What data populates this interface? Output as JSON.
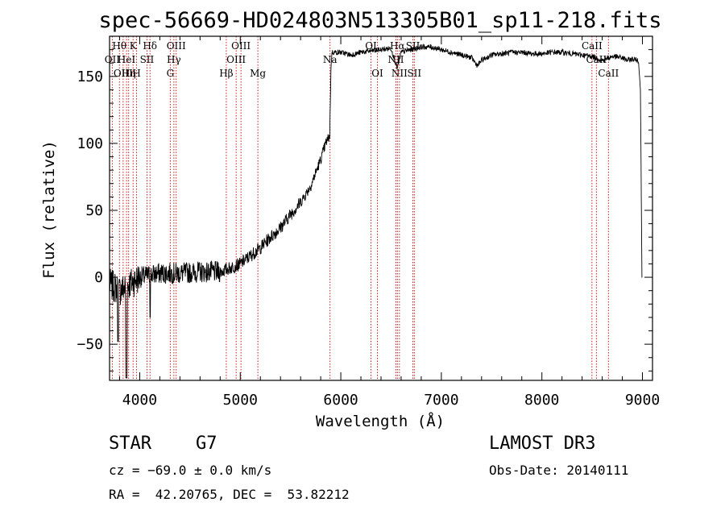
{
  "chart_data": {
    "type": "line",
    "title": "spec-56669-HD024803N513305B01_sp11-218.fits",
    "xlabel": "Wavelength (Å)",
    "ylabel": "Flux (relative)",
    "xlim": [
      3700,
      9100
    ],
    "ylim": [
      -77,
      180
    ],
    "xticks": [
      4000,
      5000,
      6000,
      7000,
      8000,
      9000
    ],
    "yticks": [
      -50,
      0,
      50,
      100,
      150
    ],
    "ytick_labels": [
      "−50",
      "0",
      "50",
      "100",
      "150"
    ],
    "spectrum_anchors": {
      "x": [
        3700,
        3800,
        3900,
        4000,
        4200,
        4400,
        4600,
        4800,
        5000,
        5100,
        5200,
        5300,
        5400,
        5500,
        5600,
        5700,
        5750,
        5800,
        5850,
        5890,
        5900,
        5910,
        5950,
        6000,
        6100,
        6200,
        6300,
        6400,
        6500,
        6562,
        6600,
        6700,
        6800,
        6900,
        7000,
        7100,
        7200,
        7300,
        7360,
        7400,
        7500,
        7600,
        7700,
        7800,
        7900,
        8000,
        8100,
        8200,
        8300,
        8400,
        8500,
        8600,
        8700,
        8800,
        8850,
        8900,
        8960,
        8980,
        8990,
        8995,
        9000
      ],
      "y": [
        -5,
        -10,
        -5,
        0,
        3,
        3,
        4,
        4,
        10,
        16,
        22,
        30,
        37,
        47,
        56,
        68,
        78,
        88,
        100,
        106,
        150,
        168,
        168,
        168,
        166,
        168,
        169,
        170,
        171,
        156,
        168,
        170,
        172,
        172,
        170,
        168,
        166,
        164,
        158,
        162,
        166,
        167,
        168,
        168,
        167,
        167,
        168,
        168,
        167,
        166,
        165,
        162,
        165,
        164,
        162,
        163,
        162,
        140,
        50,
        0,
        0
      ]
    },
    "spectral_lines": [
      {
        "wavelength": 3727,
        "row1": "",
        "row2": "OII",
        "row3": ""
      },
      {
        "wavelength": 3798,
        "row1": "Hθ",
        "row2": "",
        "row3": ""
      },
      {
        "wavelength": 3835,
        "row1": "",
        "row2": "",
        "row3": "OIII"
      },
      {
        "wavelength": 3869,
        "row1": "",
        "row2": "HeI",
        "row3": ""
      },
      {
        "wavelength": 3890,
        "row1": "",
        "row2": "",
        "row3": "Hη"
      },
      {
        "wavelength": 3934,
        "row1": "K",
        "row2": "",
        "row3": ""
      },
      {
        "wavelength": 3969,
        "row1": "",
        "row2": "",
        "row3": "H"
      },
      {
        "wavelength": 4072,
        "row1": "",
        "row2": "SII",
        "row3": ""
      },
      {
        "wavelength": 4102,
        "row1": "Hδ",
        "row2": "",
        "row3": ""
      },
      {
        "wavelength": 4304,
        "row1": "",
        "row2": "",
        "row3": "G"
      },
      {
        "wavelength": 4340,
        "row1": "",
        "row2": "Hγ",
        "row3": ""
      },
      {
        "wavelength": 4363,
        "row1": "OIII",
        "row2": "",
        "row3": ""
      },
      {
        "wavelength": 4861,
        "row1": "",
        "row2": "",
        "row3": "Hβ"
      },
      {
        "wavelength": 4959,
        "row1": "",
        "row2": "OIII",
        "row3": ""
      },
      {
        "wavelength": 5007,
        "row1": "OIII",
        "row2": "",
        "row3": ""
      },
      {
        "wavelength": 5175,
        "row1": "",
        "row2": "",
        "row3": "Mg"
      },
      {
        "wavelength": 5893,
        "row1": "",
        "row2": "Na",
        "row3": ""
      },
      {
        "wavelength": 6300,
        "row1": "OI",
        "row2": "",
        "row3": ""
      },
      {
        "wavelength": 6364,
        "row1": "",
        "row2": "",
        "row3": "OI"
      },
      {
        "wavelength": 6548,
        "row1": "",
        "row2": "NII",
        "row3": ""
      },
      {
        "wavelength": 6563,
        "row1": "Hα",
        "row2": "",
        "row3": ""
      },
      {
        "wavelength": 6583,
        "row1": "",
        "row2": "",
        "row3": "NII"
      },
      {
        "wavelength": 6717,
        "row1": "SII",
        "row2": "",
        "row3": ""
      },
      {
        "wavelength": 6731,
        "row1": "",
        "row2": "",
        "row3": "SII"
      },
      {
        "wavelength": 8498,
        "row1": "CaII",
        "row2": "",
        "row3": ""
      },
      {
        "wavelength": 8542,
        "row1": "",
        "row2": "CaII",
        "row3": ""
      },
      {
        "wavelength": 8662,
        "row1": "",
        "row2": "",
        "row3": "CaII"
      }
    ]
  },
  "info": {
    "class_label": "STAR",
    "subclass_label": "G7",
    "survey": "LAMOST DR3",
    "cz": "cz = −69.0 ± 0.0 km/s",
    "obs_date": "Obs-Date: 20140111",
    "coords": "RA =  42.20765, DEC =  53.82212"
  },
  "colors": {
    "line_marker": "#cc0000",
    "spectrum": "#000000"
  }
}
